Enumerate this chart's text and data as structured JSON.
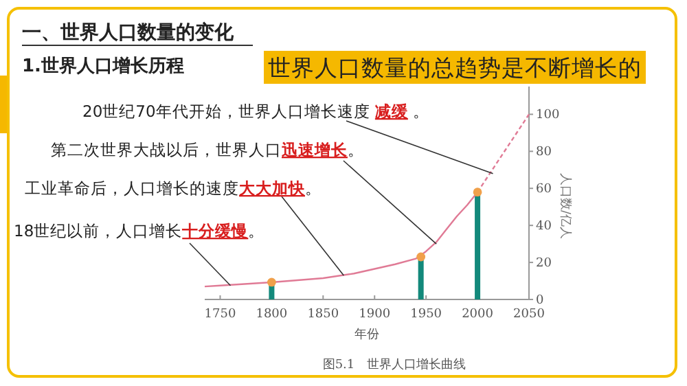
{
  "chart_data": {
    "type": "line",
    "title": "一、世界人口数量的变化",
    "subtitle": "1.世界人口增长历程",
    "xlabel": "年份",
    "ylabel": "人口数/亿人",
    "xlim": [
      1735,
      2050
    ],
    "xticks": [
      1750,
      1800,
      1850,
      1900,
      1950,
      2000,
      2050
    ],
    "ylim": [
      0,
      115
    ],
    "yticks": [
      0,
      20,
      40,
      60,
      80,
      100
    ],
    "series": [
      {
        "type": "line",
        "color": "#e07a95",
        "line_style": "solid",
        "x": [
          1735,
          1750,
          1800,
          1850,
          1880,
          1900,
          1920,
          1940,
          1950,
          1960,
          1970,
          1980,
          1990,
          2000
        ],
        "values": [
          7,
          7.5,
          9.3,
          11.5,
          14,
          16.5,
          19,
          22,
          26,
          31,
          38,
          45,
          51,
          58
        ]
      },
      {
        "type": "line",
        "color": "#e07a95",
        "line_style": "dashed",
        "x": [
          2000,
          2050
        ],
        "values": [
          58,
          100
        ]
      },
      {
        "type": "bar",
        "color": "#13897b",
        "x": [
          1800,
          1945,
          2000
        ],
        "values": [
          9.3,
          23,
          58
        ]
      },
      {
        "type": "scatter",
        "color": "#f0a04b",
        "marker": "circle",
        "x": [
          1800,
          1945,
          2000
        ],
        "values": [
          9.3,
          23,
          58
        ]
      }
    ],
    "annotations": [
      "世界人口数量的总趋势是不断增长的",
      {
        "text": "20世纪70年代开始，世界人口增长速度 **减缓** 。",
        "x": 2015,
        "y": 68
      },
      {
        "text": "第二次世界大战以后，世界人口**迅速增长**。",
        "x": 1960,
        "y": 30
      },
      {
        "text": "工业革命后，人口增长的速度**大大加快**。",
        "x": 1870,
        "y": 13
      },
      {
        "text": "18世纪以前，人口增长**十分缓慢**。",
        "x": 1760,
        "y": 7.5
      },
      "图5.1　世界人口增长曲线"
    ]
  }
}
